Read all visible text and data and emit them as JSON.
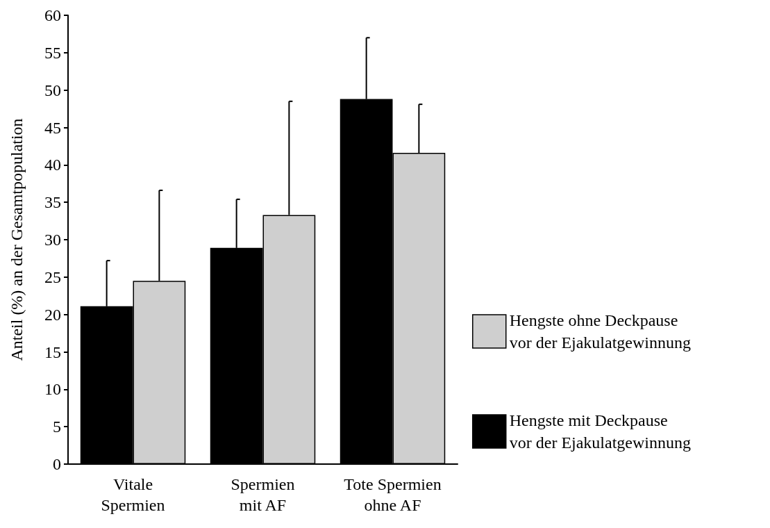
{
  "chart_data": {
    "type": "bar",
    "ylabel": "Anteil (%) an der Gesamtpopulation",
    "categories": [
      "Vitale\nSpermien",
      "Spermien\nmit AF",
      "Tote Spermien\nohne AF"
    ],
    "series": [
      {
        "name": "Hengste mit Deckpause\nvor der Ejakulatgewinnung",
        "color": "#000000",
        "values": [
          21.1,
          28.9,
          48.8
        ],
        "errors": [
          [
            21.1,
            27.2
          ],
          [
            28.9,
            35.4
          ],
          [
            48.8,
            57
          ]
        ]
      },
      {
        "name": "Hengste ohne Deckpause\nvor der Ejakulatgewinnung",
        "color": "#cfcfcf",
        "values": [
          24.5,
          33.3,
          41.6
        ],
        "errors": [
          [
            24.5,
            36.6
          ],
          [
            33.3,
            48.5
          ],
          [
            41.6,
            48.1
          ]
        ]
      }
    ],
    "ylim": [
      0,
      60
    ],
    "yticks": [
      0,
      5,
      10,
      15,
      20,
      25,
      30,
      35,
      40,
      45,
      50,
      55,
      60
    ],
    "grid": false,
    "legend": "right"
  }
}
